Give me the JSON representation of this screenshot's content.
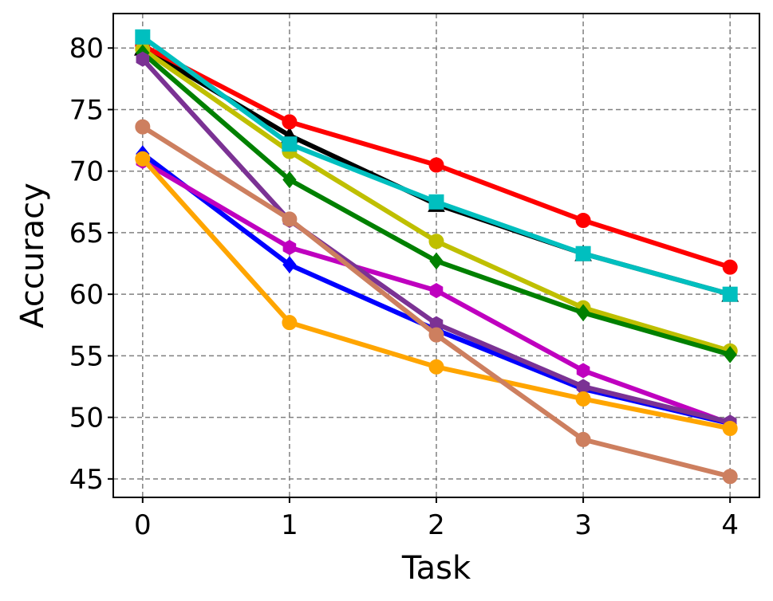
{
  "chart_data": {
    "type": "line",
    "title": "",
    "xlabel": "Task",
    "ylabel": "Accuracy",
    "x": [
      0,
      1,
      2,
      3,
      4
    ],
    "xlim": [
      -0.2,
      4.2
    ],
    "ylim": [
      43.5,
      82.8
    ],
    "xticks": [
      "0",
      "1",
      "2",
      "3",
      "4"
    ],
    "yticks": [
      45,
      50,
      55,
      60,
      65,
      70,
      75,
      80
    ],
    "grid": true,
    "series": [
      {
        "color": "#000000",
        "marker": "triangle",
        "values": [
          80.0,
          72.9,
          67.3,
          63.3,
          60.0
        ]
      },
      {
        "color": "#ff0000",
        "marker": "circle",
        "values": [
          80.2,
          74.0,
          70.5,
          66.0,
          62.2
        ]
      },
      {
        "color": "#bfbf00",
        "marker": "circle",
        "values": [
          79.9,
          71.6,
          64.3,
          58.9,
          55.4
        ]
      },
      {
        "color": "#008000",
        "marker": "diamond",
        "values": [
          79.6,
          69.3,
          62.7,
          58.5,
          55.1
        ]
      },
      {
        "color": "#00bfbf",
        "marker": "square",
        "values": [
          80.9,
          72.2,
          67.5,
          63.3,
          60.0
        ]
      },
      {
        "color": "#0000ff",
        "marker": "diamond",
        "values": [
          71.4,
          62.4,
          57.1,
          52.3,
          49.5
        ]
      },
      {
        "color": "#bf00bf",
        "marker": "hexagon",
        "values": [
          70.8,
          63.8,
          60.3,
          53.8,
          49.5
        ]
      },
      {
        "color": "#7b3294",
        "marker": "hexagon",
        "values": [
          79.1,
          66.0,
          57.6,
          52.5,
          49.6
        ]
      },
      {
        "color": "#ffa500",
        "marker": "circle",
        "values": [
          71.0,
          57.7,
          54.1,
          51.5,
          49.1
        ]
      },
      {
        "color": "#cd7f5f",
        "marker": "circle",
        "values": [
          73.6,
          66.1,
          56.7,
          48.2,
          45.2
        ]
      }
    ]
  }
}
